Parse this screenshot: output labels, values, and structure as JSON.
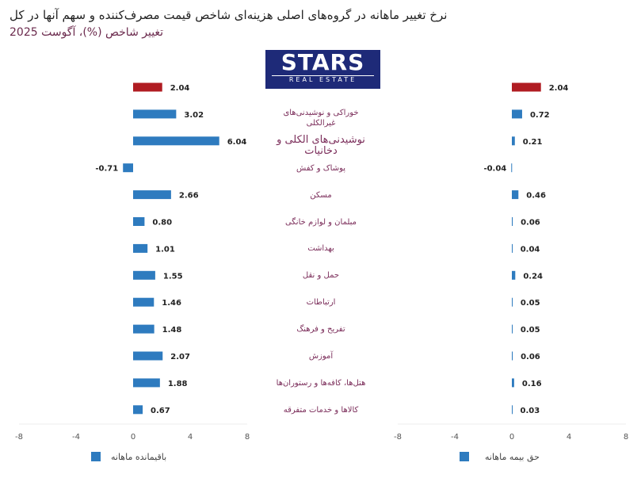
{
  "title": {
    "line1": "نرخ تغییر ماهانه در گروه‌های اصلی هزینه‌ای شاخص قیمت مصرف‌کننده و سهم آنها در کل",
    "line2": "تغییر شاخص (%)، آگوست 2025"
  },
  "logo": {
    "text": "STARS",
    "subtext": "REAL ESTATE"
  },
  "colors": {
    "bar": "#2e7bbf",
    "total": "#b01c22",
    "category": "#7b2d5a"
  },
  "chart_data": [
    {
      "type": "bar",
      "orientation": "horizontal",
      "series": [
        {
          "name": "باقیمانده ماهانه",
          "values": [
            2.04,
            3.02,
            6.04,
            -0.71,
            2.66,
            0.8,
            1.01,
            1.55,
            1.46,
            1.48,
            2.07,
            1.88,
            0.67
          ]
        }
      ],
      "xlim": [
        -8,
        8
      ],
      "xticks": [
        -8,
        -4,
        0,
        4,
        8
      ],
      "legend": "bottom"
    },
    {
      "type": "bar",
      "orientation": "horizontal",
      "series": [
        {
          "name": "حق بیمه ماهانه",
          "values": [
            2.04,
            0.72,
            0.21,
            -0.04,
            0.46,
            0.06,
            0.04,
            0.24,
            0.05,
            0.05,
            0.06,
            0.16,
            0.03
          ]
        }
      ],
      "xlim": [
        -8,
        8
      ],
      "xticks": [
        -8,
        -4,
        0,
        4,
        8
      ],
      "legend": "bottom"
    }
  ],
  "categories": [
    "",
    "خوراکی و نوشیدنی‌های غیرالکلی",
    "نوشیدنی‌های الکلی و دخانیات",
    "پوشاک و کفش",
    "مسکن",
    "مبلمان و لوازم خانگی",
    "بهداشت",
    "حمل و نقل",
    "ارتباطات",
    "تفریح و فرهنگ",
    "آموزش",
    "هتل‌ها، کافه‌ها و رستوران‌ها",
    "کالاها و خدمات متفرقه"
  ]
}
